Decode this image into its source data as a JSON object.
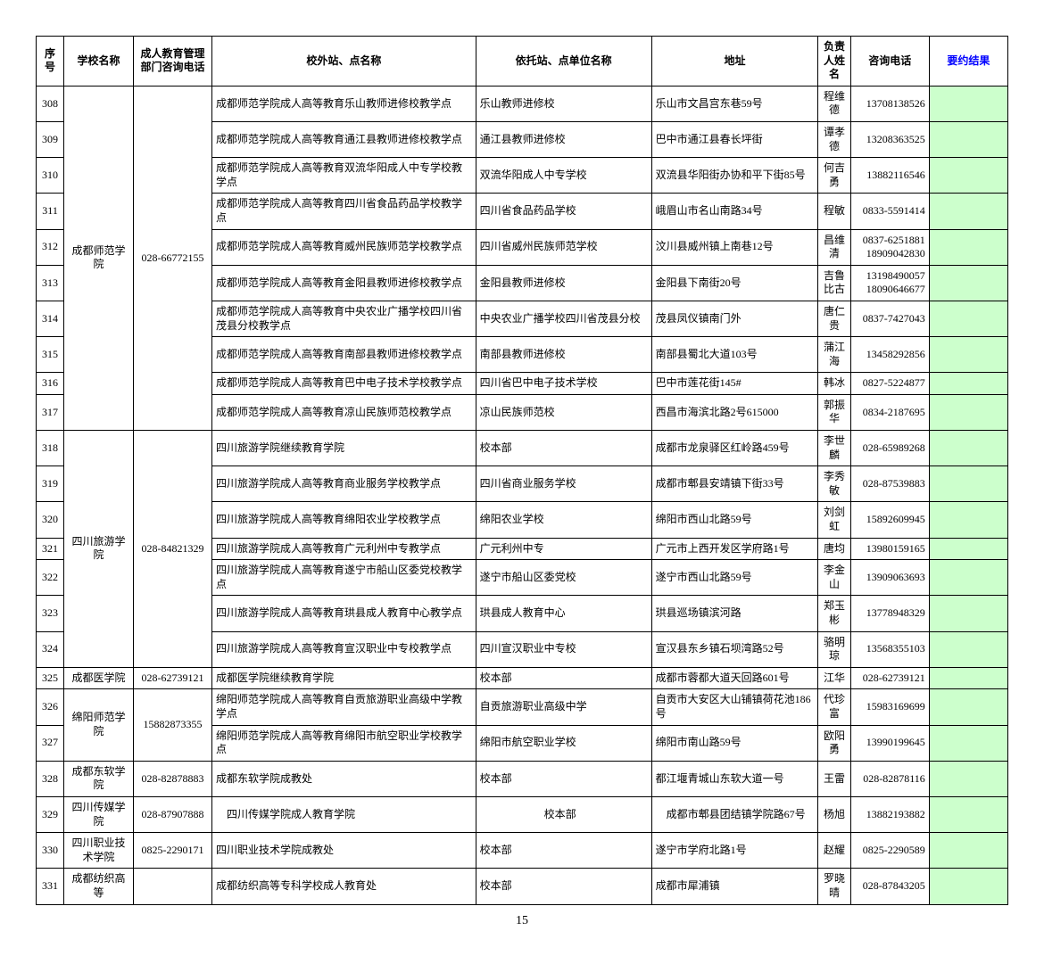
{
  "headers": {
    "seq": "序号",
    "school": "学校名称",
    "phone1": "成人教育管理部门咨询电话",
    "station": "校外站、点名称",
    "unit": "依托站、点单位名称",
    "addr": "地址",
    "person": "负责人姓名",
    "phone2": "咨询电话",
    "result": "要约结果"
  },
  "schools": [
    {
      "name": "成都师范学院",
      "phone": "028-66772155",
      "rows": [
        {
          "seq": "308",
          "station": "成都师范学院成人高等教育乐山教师进修校教学点",
          "unit": "乐山教师进修校",
          "addr": "乐山市文昌宫东巷59号",
          "person": "程维德",
          "phone": "13708138526"
        },
        {
          "seq": "309",
          "station": "成都师范学院成人高等教育通江县教师进修校教学点",
          "unit": "通江县教师进修校",
          "addr": "巴中市通江县春长坪街",
          "person": "谭孝德",
          "phone": "13208363525"
        },
        {
          "seq": "310",
          "station": "成都师范学院成人高等教育双流华阳成人中专学校教学点",
          "unit": "双流华阳成人中专学校",
          "addr": "双流县华阳街办协和平下街85号",
          "person": "何吉勇",
          "phone": "13882116546"
        },
        {
          "seq": "311",
          "station": "成都师范学院成人高等教育四川省食品药品学校教学点",
          "unit": "四川省食品药品学校",
          "addr": "峨眉山市名山南路34号",
          "person": "程敏",
          "phone": "0833-5591414"
        },
        {
          "seq": "312",
          "station": "成都师范学院成人高等教育威州民族师范学校教学点",
          "unit": "四川省威州民族师范学校",
          "addr": "汶川县威州镇上南巷12号",
          "person": "昌维清",
          "phone": "0837-6251881 18909042830"
        },
        {
          "seq": "313",
          "station": "成都师范学院成人高等教育金阳县教师进修校教学点",
          "unit": "金阳县教师进修校",
          "addr": "金阳县下南街20号",
          "person": "吉鲁比古",
          "phone": "13198490057 18090646677"
        },
        {
          "seq": "314",
          "station": "成都师范学院成人高等教育中央农业广播学校四川省茂县分校教学点",
          "unit": "中央农业广播学校四川省茂县分校",
          "addr": "茂县凤仪镇南门外",
          "person": "唐仁贵",
          "phone": "0837-7427043"
        },
        {
          "seq": "315",
          "station": "成都师范学院成人高等教育南部县教师进修校教学点",
          "unit": "南部县教师进修校",
          "addr": "南部县蜀北大道103号",
          "person": "蒲江海",
          "phone": "13458292856"
        },
        {
          "seq": "316",
          "station": "成都师范学院成人高等教育巴中电子技术学校教学点",
          "unit": "四川省巴中电子技术学校",
          "addr": "巴中市莲花街145#",
          "person": "韩冰",
          "phone": "0827-5224877"
        },
        {
          "seq": "317",
          "station": "成都师范学院成人高等教育凉山民族师范校教学点",
          "unit": "凉山民族师范校",
          "addr": "西昌市海滨北路2号615000",
          "person": "郭振华",
          "phone": "0834-2187695"
        }
      ]
    },
    {
      "name": "四川旅游学院",
      "phone": "028-84821329",
      "rows": [
        {
          "seq": "318",
          "station": "四川旅游学院继续教育学院",
          "unit": "校本部",
          "addr": "成都市龙泉驿区红岭路459号",
          "person": "李世麟",
          "phone": "028-65989268"
        },
        {
          "seq": "319",
          "station": "四川旅游学院成人高等教育商业服务学校教学点",
          "unit": "四川省商业服务学校",
          "addr": "成都市郫县安靖镇下街33号",
          "person": "李秀敏",
          "phone": "028-87539883"
        },
        {
          "seq": "320",
          "station": "四川旅游学院成人高等教育绵阳农业学校教学点",
          "unit": "绵阳农业学校",
          "addr": "绵阳市西山北路59号",
          "person": "刘剑虹",
          "phone": "15892609945"
        },
        {
          "seq": "321",
          "station": "四川旅游学院成人高等教育广元利州中专教学点",
          "unit": "广元利州中专",
          "addr": "广元市上西开发区学府路1号",
          "person": "唐均",
          "phone": "13980159165"
        },
        {
          "seq": "322",
          "station": "四川旅游学院成人高等教育遂宁市船山区委党校教学点",
          "unit": "遂宁市船山区委党校",
          "addr": "遂宁市西山北路59号",
          "person": "李金山",
          "phone": "13909063693"
        },
        {
          "seq": "323",
          "station": "四川旅游学院成人高等教育珙县成人教育中心教学点",
          "unit": "珙县成人教育中心",
          "addr": "珙县巡场镇滨河路",
          "person": "郑玉彬",
          "phone": "13778948329"
        },
        {
          "seq": "324",
          "station": "四川旅游学院成人高等教育宣汉职业中专校教学点",
          "unit": "四川宣汉职业中专校",
          "addr": "宣汉县东乡镇石坝湾路52号",
          "person": "骆明琼",
          "phone": "13568355103"
        }
      ]
    },
    {
      "name": "成都医学院",
      "phone": "028-62739121",
      "rows": [
        {
          "seq": "325",
          "station": "成都医学院继续教育学院",
          "unit": "校本部",
          "addr": "成都市蓉都大道天回路601号",
          "person": "江华",
          "phone": "028-62739121"
        }
      ]
    },
    {
      "name": "绵阳师范学院",
      "phone": "15882873355",
      "rows": [
        {
          "seq": "326",
          "station": "绵阳师范学院成人高等教育自贡旅游职业高级中学教学点",
          "unit": "自贡旅游职业高级中学",
          "addr": "自贡市大安区大山铺镇荷花池186号",
          "person": "代珍富",
          "phone": "15983169699"
        },
        {
          "seq": "327",
          "station": "绵阳师范学院成人高等教育绵阳市航空职业学校教学点",
          "unit": "绵阳市航空职业学校",
          "addr": "绵阳市南山路59号",
          "person": "欧阳勇",
          "phone": "13990199645"
        }
      ]
    },
    {
      "name": "成都东软学院",
      "phone": "028-82878883",
      "rows": [
        {
          "seq": "328",
          "station": "成都东软学院成教处",
          "unit": "校本部",
          "addr": "都江堰青城山东软大道一号",
          "person": "王雷",
          "phone": "028-82878116"
        }
      ]
    },
    {
      "name": "四川传媒学院",
      "phone": "028-87907888",
      "rows": [
        {
          "seq": "329",
          "station": "　四川传媒学院成人教育学院",
          "unit": "　　　　　　校本部",
          "addr": "　成都市郫县团结镇学院路67号",
          "person": "杨旭",
          "phone": "13882193882"
        }
      ]
    },
    {
      "name": "四川职业技术学院",
      "phone": "0825-2290171",
      "rows": [
        {
          "seq": "330",
          "station": "四川职业技术学院成教处",
          "unit": "校本部",
          "addr": "遂宁市学府北路1号",
          "person": "赵耀",
          "phone": "0825-2290589"
        }
      ]
    },
    {
      "name": "成都纺织高等",
      "phone": "",
      "rows": [
        {
          "seq": "331",
          "station": "成都纺织高等专科学校成人教育处",
          "unit": "校本部",
          "addr": "成都市犀浦镇",
          "person": "罗晓晴",
          "phone": "028-87843205"
        }
      ]
    }
  ],
  "pageNum": "15",
  "colors": {
    "result_bg": "#ccffcc",
    "result_header_text": "#0000ff",
    "border": "#000000",
    "background": "#ffffff"
  }
}
